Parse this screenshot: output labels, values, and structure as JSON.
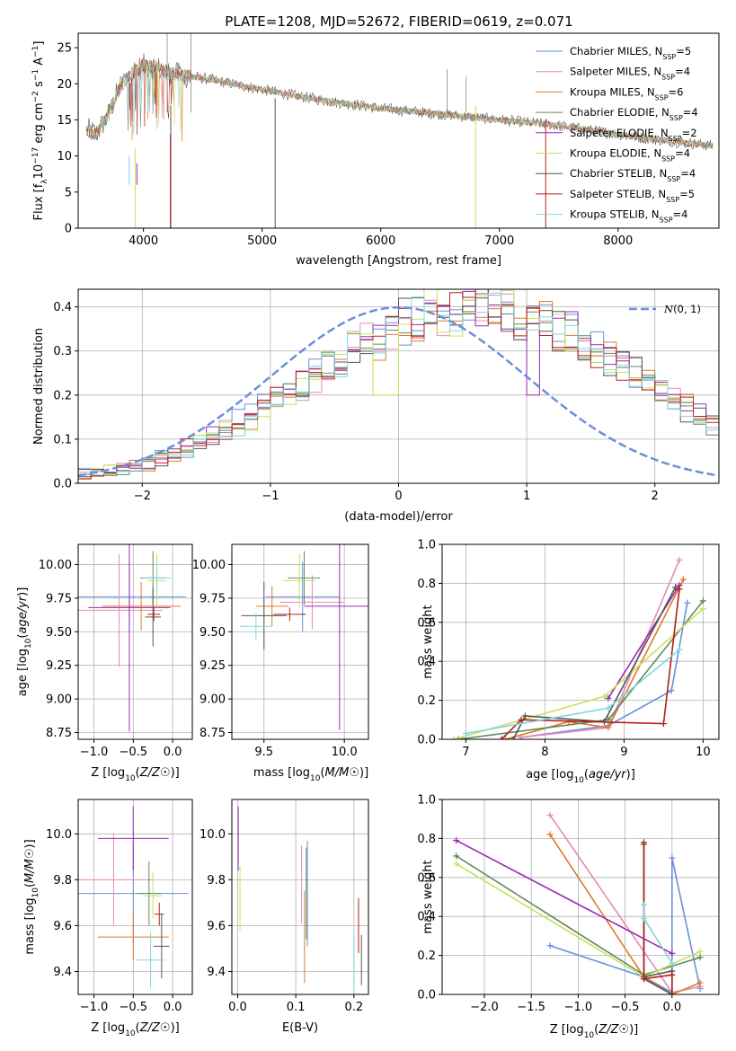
{
  "title": "PLATE=1208, MJD=52672, FIBERID=0619, z=0.071",
  "colors": {
    "Chabrier MILES": "#6a8fdc",
    "Salpeter MILES": "#e58abd",
    "Kroupa MILES": "#e07a28",
    "Chabrier ELODIE": "#5f8a5f",
    "Salpeter ELODIE": "#9a2ab5",
    "Kroupa ELODIE": "#c8e15a",
    "Chabrier STELIB": "#555555",
    "Salpeter STELIB": "#b3201a",
    "Kroupa STELIB": "#7fd6df"
  },
  "chart_data": [
    {
      "id": "spectrum",
      "type": "line",
      "title": "PLATE=1208, MJD=52672, FIBERID=0619, z=0.071",
      "xlabel": "wavelength [Angstrom, rest frame]",
      "ylabel": "Flux [f_λ10^-17 erg cm^-2 s^-1 A^-1]",
      "xlim": [
        3450,
        8850
      ],
      "ylim": [
        0,
        27
      ],
      "xticks": [
        4000,
        5000,
        6000,
        7000,
        8000
      ],
      "yticks": [
        0,
        5,
        10,
        15,
        20,
        25
      ],
      "legend_position": "top-right",
      "spectrum_shape": {
        "x": [
          3550,
          3600,
          3700,
          3800,
          3900,
          4000,
          4100,
          4200,
          4400,
          4600,
          4800,
          5000,
          5300,
          5600,
          6000,
          6500,
          7000,
          7400,
          7800,
          8200,
          8850
        ],
        "y": [
          13.5,
          13.0,
          15.5,
          19.5,
          21.5,
          22.5,
          22.3,
          21.5,
          21.0,
          20.5,
          19.8,
          19.2,
          18.3,
          17.5,
          16.6,
          15.8,
          15.0,
          14.4,
          13.5,
          12.5,
          11.3
        ]
      },
      "series": [
        {
          "name": "Chabrier MILES, N_SSP=5",
          "label": "Chabrier MILES, N",
          "nssp": "5"
        },
        {
          "name": "Salpeter MILES, N_SSP=4",
          "label": "Salpeter MILES, N",
          "nssp": "4"
        },
        {
          "name": "Kroupa MILES, N_SSP=6",
          "label": "Kroupa MILES, N",
          "nssp": "6"
        },
        {
          "name": "Chabrier ELODIE, N_SSP=4",
          "label": "Chabrier ELODIE, N",
          "nssp": "4"
        },
        {
          "name": "Salpeter ELODIE, N_SSP=2",
          "label": "Salpeter ELODIE, N",
          "nssp": "2"
        },
        {
          "name": "Kroupa ELODIE, N_SSP=4",
          "label": "Kroupa ELODIE, N",
          "nssp": "4"
        },
        {
          "name": "Chabrier STELIB, N_SSP=4",
          "label": "Chabrier STELIB, N",
          "nssp": "4"
        },
        {
          "name": "Salpeter STELIB, N_SSP=5",
          "label": "Salpeter STELIB, N",
          "nssp": "5"
        },
        {
          "name": "Kroupa STELIB, N_SSP=4",
          "label": "Kroupa STELIB, N",
          "nssp": "4"
        }
      ]
    },
    {
      "id": "residuals",
      "type": "line",
      "xlabel": "(data-model)/error",
      "ylabel": "Normed distribution",
      "xlim": [
        -2.5,
        2.5
      ],
      "ylim": [
        0,
        0.44
      ],
      "xticks": [
        -2,
        -1,
        0,
        1,
        2
      ],
      "yticks": [
        0.0,
        0.1,
        0.2,
        0.3,
        0.4
      ],
      "legend": "N(0,1)",
      "legend_position": "top-right",
      "bin_width": 0.1,
      "histogram_shape": [
        0.02,
        0.025,
        0.03,
        0.035,
        0.04,
        0.048,
        0.056,
        0.066,
        0.077,
        0.09,
        0.104,
        0.119,
        0.135,
        0.152,
        0.17,
        0.189,
        0.208,
        0.227,
        0.247,
        0.266,
        0.285,
        0.303,
        0.32,
        0.336,
        0.351,
        0.364,
        0.375,
        0.385,
        0.392,
        0.397,
        0.4,
        0.4,
        0.397,
        0.392,
        0.385,
        0.375,
        0.364,
        0.351,
        0.336,
        0.32,
        0.303,
        0.285,
        0.266,
        0.247,
        0.227,
        0.208,
        0.189,
        0.17,
        0.152,
        0.135,
        0.119,
        0.104,
        0.09,
        0.077,
        0.066,
        0.056,
        0.048,
        0.04,
        0.035,
        0.03,
        0.025,
        0.02
      ]
    },
    {
      "id": "z-age",
      "type": "scatter",
      "xlabel": "Z [log10(Z/Z☉)]",
      "ylabel": "age [log10(age/yr)]",
      "xlim": [
        -1.2,
        0.25
      ],
      "ylim": [
        8.7,
        10.15
      ],
      "xticks": [
        -1.0,
        -0.5,
        0.0
      ],
      "yticks": [
        8.75,
        9.0,
        9.25,
        9.5,
        9.75,
        10.0
      ],
      "points": [
        {
          "series": "Chabrier MILES",
          "x": -0.55,
          "xerr": 0.72,
          "y": 9.76,
          "yerr": 0.26
        },
        {
          "series": "Salpeter MILES",
          "x": -0.68,
          "xerr": 0.55,
          "y": 9.66,
          "yerr": 0.42
        },
        {
          "series": "Kroupa MILES",
          "x": -0.4,
          "xerr": 0.5,
          "y": 9.69,
          "yerr": 0.18
        },
        {
          "series": "Chabrier ELODIE",
          "x": -0.25,
          "xerr": 0.16,
          "y": 9.9,
          "yerr": 0.2
        },
        {
          "series": "Salpeter ELODIE",
          "x": -0.55,
          "xerr": 0.52,
          "y": 9.68,
          "yerr": 0.92
        },
        {
          "series": "Kroupa ELODIE",
          "x": -0.2,
          "xerr": 0.12,
          "y": 9.88,
          "yerr": 0.2
        },
        {
          "series": "Chabrier STELIB",
          "x": -0.25,
          "xerr": 0.1,
          "y": 9.61,
          "yerr": 0.22
        },
        {
          "series": "Salpeter STELIB",
          "x": -0.24,
          "xerr": 0.08,
          "y": 9.63,
          "yerr": 0.05
        },
        {
          "series": "Kroupa STELIB",
          "x": -0.2,
          "xerr": 0.18,
          "y": 9.9,
          "yerr": 0.1
        }
      ]
    },
    {
      "id": "mass-age",
      "type": "scatter",
      "xlabel": "mass [log10(M/M☉)]",
      "ylabel": "",
      "xlim": [
        9.3,
        10.15
      ],
      "ylim": [
        8.7,
        10.15
      ],
      "xticks": [
        9.5,
        10.0
      ],
      "yticks": [
        8.75,
        9.0,
        9.25,
        9.5,
        9.75,
        10.0
      ],
      "points": [
        {
          "series": "Chabrier MILES",
          "x": 9.74,
          "xerr": 0.23,
          "y": 9.76,
          "yerr": 0.26
        },
        {
          "series": "Salpeter MILES",
          "x": 9.8,
          "xerr": 0.2,
          "y": 9.72,
          "yerr": 0.2
        },
        {
          "series": "Kroupa MILES",
          "x": 9.55,
          "xerr": 0.1,
          "y": 9.69,
          "yerr": 0.15
        },
        {
          "series": "Chabrier ELODIE",
          "x": 9.75,
          "xerr": 0.1,
          "y": 9.9,
          "yerr": 0.2
        },
        {
          "series": "Salpeter ELODIE",
          "x": 9.97,
          "xerr": 0.22,
          "y": 9.69,
          "yerr": 0.92
        },
        {
          "series": "Kroupa ELODIE",
          "x": 9.72,
          "xerr": 0.1,
          "y": 9.88,
          "yerr": 0.2
        },
        {
          "series": "Chabrier STELIB",
          "x": 9.5,
          "xerr": 0.14,
          "y": 9.62,
          "yerr": 0.25
        },
        {
          "series": "Salpeter STELIB",
          "x": 9.66,
          "xerr": 0.1,
          "y": 9.63,
          "yerr": 0.05
        },
        {
          "series": "Kroupa STELIB",
          "x": 9.45,
          "xerr": 0.1,
          "y": 9.54,
          "yerr": 0.1
        }
      ]
    },
    {
      "id": "age-weight",
      "type": "line",
      "xlabel": "age [log10(age/yr)]",
      "ylabel": "mass weight",
      "xlim": [
        6.7,
        10.2
      ],
      "ylim": [
        0,
        1.0
      ],
      "xticks": [
        7,
        8,
        9,
        10
      ],
      "yticks": [
        0.0,
        0.2,
        0.4,
        0.6,
        0.8,
        1.0
      ],
      "series": [
        {
          "name": "Chabrier MILES",
          "x": [
            7.7,
            8.8,
            9.6,
            9.8
          ],
          "y": [
            0.01,
            0.07,
            0.25,
            0.7
          ]
        },
        {
          "name": "Salpeter MILES",
          "x": [
            7.7,
            8.8,
            9.7
          ],
          "y": [
            0.01,
            0.06,
            0.92
          ]
        },
        {
          "name": "Kroupa MILES",
          "x": [
            7.5,
            8.3,
            8.8,
            9.75
          ],
          "y": [
            0.0,
            0.09,
            0.06,
            0.82
          ]
        },
        {
          "name": "Chabrier ELODIE",
          "x": [
            6.9,
            8.8,
            10.0
          ],
          "y": [
            0.0,
            0.1,
            0.71
          ]
        },
        {
          "name": "Salpeter ELODIE",
          "x": [
            8.8,
            9.7
          ],
          "y": [
            0.21,
            0.79
          ]
        },
        {
          "name": "Kroupa ELODIE",
          "x": [
            6.85,
            8.75,
            10.0
          ],
          "y": [
            0.0,
            0.22,
            0.67
          ]
        },
        {
          "name": "Chabrier STELIB",
          "x": [
            7.6,
            7.75,
            8.75,
            9.65
          ],
          "y": [
            0.0,
            0.12,
            0.09,
            0.78
          ]
        },
        {
          "name": "Salpeter STELIB",
          "x": [
            7.45,
            7.7,
            9.5,
            9.7
          ],
          "y": [
            0.0,
            0.1,
            0.08,
            0.77
          ]
        },
        {
          "name": "Kroupa STELIB",
          "x": [
            7.0,
            8.8,
            9.7
          ],
          "y": [
            0.03,
            0.16,
            0.46
          ]
        }
      ]
    },
    {
      "id": "z-mass",
      "type": "scatter",
      "xlabel": "Z [log10(Z/Z☉)]",
      "ylabel": "mass [log10(M/M☉)]",
      "xlim": [
        -1.2,
        0.25
      ],
      "ylim": [
        9.3,
        10.15
      ],
      "xticks": [
        -1.0,
        -0.5,
        0.0
      ],
      "yticks": [
        9.4,
        9.6,
        9.8,
        10.0
      ],
      "points": [
        {
          "series": "Chabrier MILES",
          "x": -0.5,
          "xerr": 0.7,
          "y": 9.74,
          "yerr": 0.22
        },
        {
          "series": "Salpeter MILES",
          "x": -0.75,
          "xerr": 0.5,
          "y": 9.8,
          "yerr": 0.2
        },
        {
          "series": "Kroupa MILES",
          "x": -0.5,
          "xerr": 0.45,
          "y": 9.55,
          "yerr": 0.1
        },
        {
          "series": "Chabrier ELODIE",
          "x": -0.3,
          "xerr": 0.15,
          "y": 9.74,
          "yerr": 0.14
        },
        {
          "series": "Salpeter ELODIE",
          "x": -0.5,
          "xerr": 0.45,
          "y": 9.98,
          "yerr": 0.14
        },
        {
          "series": "Kroupa ELODIE",
          "x": -0.25,
          "xerr": 0.12,
          "y": 9.73,
          "yerr": 0.1
        },
        {
          "series": "Chabrier STELIB",
          "x": -0.14,
          "xerr": 0.1,
          "y": 9.51,
          "yerr": 0.14
        },
        {
          "series": "Salpeter STELIB",
          "x": -0.17,
          "xerr": 0.06,
          "y": 9.65,
          "yerr": 0.05
        },
        {
          "series": "Kroupa STELIB",
          "x": -0.28,
          "xerr": 0.18,
          "y": 9.45,
          "yerr": 0.12
        }
      ]
    },
    {
      "id": "ebv-mass",
      "type": "scatter",
      "xlabel": "E(B-V)",
      "ylabel": "",
      "xlim": [
        -0.01,
        0.225
      ],
      "ylim": [
        9.3,
        10.15
      ],
      "xticks": [
        0.0,
        0.1,
        0.2
      ],
      "yticks": [
        9.4,
        9.6,
        9.8,
        10.0
      ],
      "points": [
        {
          "series": "Chabrier MILES",
          "x": 0.12,
          "y": 9.74,
          "yerr": 0.23
        },
        {
          "series": "Salpeter MILES",
          "x": 0.11,
          "y": 9.78,
          "yerr": 0.17
        },
        {
          "series": "Kroupa MILES",
          "x": 0.115,
          "y": 9.55,
          "yerr": 0.2
        },
        {
          "series": "Chabrier ELODIE",
          "x": 0.118,
          "y": 9.74,
          "yerr": 0.2
        },
        {
          "series": "Salpeter ELODIE",
          "x": 0.001,
          "y": 9.98,
          "yerr": 0.14
        },
        {
          "series": "Kroupa ELODIE",
          "x": 0.004,
          "y": 9.72,
          "yerr": 0.14
        },
        {
          "series": "Chabrier STELIB",
          "x": 0.213,
          "y": 9.45,
          "yerr": 0.11
        },
        {
          "series": "Salpeter STELIB",
          "x": 0.208,
          "y": 9.6,
          "yerr": 0.12
        },
        {
          "series": "Kroupa STELIB",
          "x": 0.2,
          "y": 9.45,
          "yerr": 0.12
        }
      ]
    },
    {
      "id": "z-weight",
      "type": "line",
      "xlabel": "Z [log10(Z/Z☉)]",
      "ylabel": "mass weight",
      "xlim": [
        -2.45,
        0.5
      ],
      "ylim": [
        0,
        1.0
      ],
      "xticks": [
        -2.0,
        -1.5,
        -1.0,
        -0.5,
        0.0
      ],
      "yticks": [
        0.0,
        0.2,
        0.4,
        0.6,
        0.8,
        1.0
      ],
      "series": [
        {
          "name": "Chabrier MILES",
          "x": [
            -1.3,
            -0.3,
            0.0,
            0.0,
            0.3
          ],
          "y": [
            0.25,
            0.09,
            0.01,
            0.7,
            0.03
          ]
        },
        {
          "name": "Salpeter MILES",
          "x": [
            -1.3,
            0.0,
            0.3
          ],
          "y": [
            0.92,
            0.01,
            0.04
          ]
        },
        {
          "name": "Kroupa MILES",
          "x": [
            -1.3,
            -0.3,
            0.0,
            0.3
          ],
          "y": [
            0.82,
            0.09,
            0.0,
            0.06
          ]
        },
        {
          "name": "Chabrier ELODIE",
          "x": [
            -2.3,
            -0.3,
            0.3
          ],
          "y": [
            0.71,
            0.1,
            0.19
          ]
        },
        {
          "name": "Salpeter ELODIE",
          "x": [
            -2.3,
            0.0
          ],
          "y": [
            0.79,
            0.21
          ]
        },
        {
          "name": "Kroupa ELODIE",
          "x": [
            -2.3,
            -0.3,
            0.3
          ],
          "y": [
            0.67,
            0.09,
            0.22
          ]
        },
        {
          "name": "Chabrier STELIB",
          "x": [
            -0.3,
            0.0,
            0.0,
            -0.3,
            -0.3
          ],
          "y": [
            0.09,
            0.12,
            0.0,
            0.08,
            0.78
          ]
        },
        {
          "name": "Salpeter STELIB",
          "x": [
            -0.3,
            -0.3,
            0.0,
            0.0
          ],
          "y": [
            0.77,
            0.08,
            0.1,
            0.0
          ]
        },
        {
          "name": "Kroupa STELIB",
          "x": [
            -0.3,
            -0.3,
            0.0
          ],
          "y": [
            0.46,
            0.39,
            0.16
          ]
        }
      ]
    }
  ]
}
